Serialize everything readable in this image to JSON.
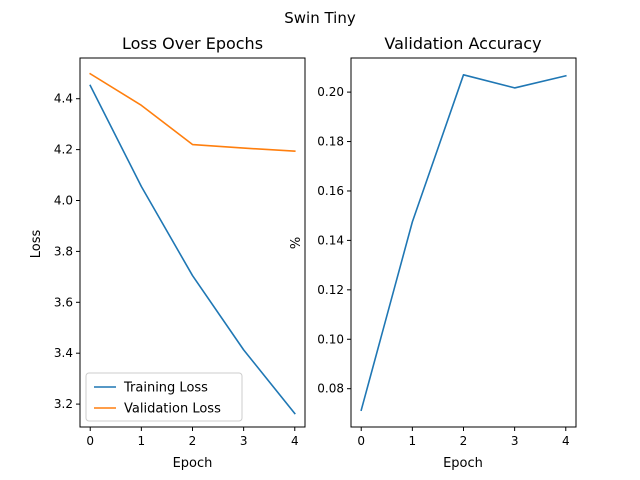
{
  "suptitle": "Swin Tiny",
  "chart_data": [
    {
      "type": "line",
      "title": "Loss Over Epochs",
      "xlabel": "Epoch",
      "ylabel": "Loss",
      "x": [
        0,
        1,
        2,
        3,
        4
      ],
      "xlim": [
        -0.2,
        4.2
      ],
      "ylim": [
        3.11,
        4.56
      ],
      "xticks": [
        0,
        1,
        2,
        3,
        4
      ],
      "yticks": [
        "3.2",
        "3.4",
        "3.6",
        "3.8",
        "4.0",
        "4.2",
        "4.4"
      ],
      "legend": "lower-left",
      "grid": false,
      "series": [
        {
          "name": "Training Loss",
          "color": "#1f77b4",
          "values": [
            4.452,
            4.055,
            3.705,
            3.413,
            3.163
          ]
        },
        {
          "name": "Validation Loss",
          "color": "#ff7f0e",
          "values": [
            4.498,
            4.374,
            4.22,
            4.206,
            4.194
          ]
        }
      ]
    },
    {
      "type": "line",
      "title": "Validation Accuracy",
      "xlabel": "Epoch",
      "ylabel": "%",
      "x": [
        0,
        1,
        2,
        3,
        4
      ],
      "xlim": [
        -0.2,
        4.2
      ],
      "ylim": [
        0.0645,
        0.2138
      ],
      "xticks": [
        0,
        1,
        2,
        3,
        4
      ],
      "yticks": [
        "0.08",
        "0.10",
        "0.12",
        "0.14",
        "0.16",
        "0.18",
        "0.20"
      ],
      "grid": false,
      "series": [
        {
          "color": "#1f77b4",
          "values": [
            0.0713,
            0.1475,
            0.207,
            0.2017,
            0.2066
          ]
        }
      ]
    }
  ]
}
